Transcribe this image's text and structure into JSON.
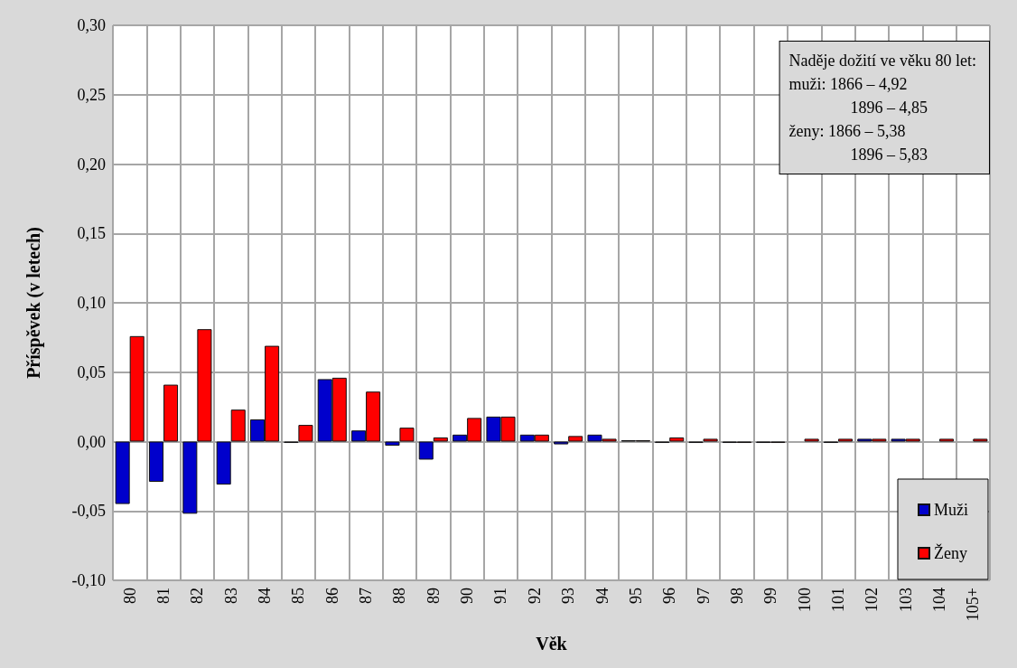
{
  "chart_data": {
    "type": "bar",
    "xlabel": "Věk",
    "ylabel": "Příspěvek (v letech)",
    "categories": [
      "80",
      "81",
      "82",
      "83",
      "84",
      "85",
      "86",
      "87",
      "88",
      "89",
      "90",
      "91",
      "92",
      "93",
      "94",
      "95",
      "96",
      "97",
      "98",
      "99",
      "100",
      "101",
      "102",
      "103",
      "104",
      "105+"
    ],
    "series": [
      {
        "name": "Muži",
        "color": "#0000cc",
        "values": [
          -0.045,
          -0.029,
          -0.052,
          -0.031,
          0.016,
          -0.001,
          0.045,
          0.008,
          -0.003,
          -0.013,
          0.005,
          0.018,
          0.005,
          -0.002,
          0.005,
          0.001,
          -0.001,
          -0.001,
          -0.001,
          -0.001,
          0,
          -0.001,
          0.002,
          0.002,
          0,
          0
        ]
      },
      {
        "name": "Ženy",
        "color": "#ff0000",
        "values": [
          0.076,
          0.041,
          0.081,
          0.023,
          0.069,
          0.012,
          0.046,
          0.036,
          0.01,
          0.003,
          0.017,
          0.018,
          0.005,
          0.004,
          0.002,
          0.001,
          0.003,
          0.002,
          -0.001,
          -0.001,
          0.002,
          0.002,
          0.002,
          0.002,
          0.002,
          0.002
        ]
      }
    ],
    "ylim": [
      -0.1,
      0.3
    ],
    "yticks": [
      {
        "value": -0.1,
        "label": "-0,10"
      },
      {
        "value": -0.05,
        "label": "-0,05"
      },
      {
        "value": 0,
        "label": "0,00"
      },
      {
        "value": 0.05,
        "label": "0,05"
      },
      {
        "value": 0.1,
        "label": "0,10"
      },
      {
        "value": 0.15,
        "label": "0,15"
      },
      {
        "value": 0.2,
        "label": "0,20"
      },
      {
        "value": 0.25,
        "label": "0,25"
      },
      {
        "value": 0.3,
        "label": "0,30"
      }
    ],
    "grid": true,
    "legend": "bottom right",
    "annotations": [
      "Naděje dožití ve věku 80 let:",
      "muži: 1866 – 4,92",
      "1896 – 4,85",
      "ženy: 1866 – 5,38",
      "1896 – 5,83"
    ]
  }
}
